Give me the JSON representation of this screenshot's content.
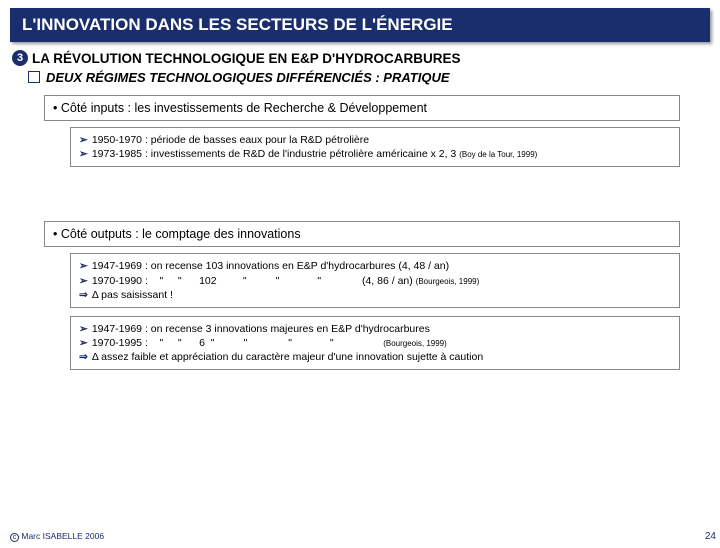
{
  "title": "L'INNOVATION DANS LES SECTEURS DE L'ÉNERGIE",
  "section_num": "3",
  "subtitle": "LA RÉVOLUTION TECHNOLOGIQUE EN E&P D'HYDROCARBURES",
  "c_line": "DEUX RÉGIMES TECHNOLOGIQUES DIFFÉRENCIÉS : PRATIQUE",
  "bullet1": "• Côté inputs : les investissements de Recherche & Développement",
  "block1": {
    "r1": "1950-1970 : période de basses eaux pour la R&D pétrolière",
    "r2a": "1973-1985 : investissements de R&D de l'industrie pétrolière américaine x 2, 3 ",
    "r2cite": "(Boy de la Tour, 1999)"
  },
  "bullet2": "• Côté outputs : le comptage des innovations",
  "block2": {
    "r1": "1947-1969 : on recense 103 innovations en E&P d'hydrocarbures (4, 48 / an)",
    "r2a": "1970-1990 :    \"     \"      102         \"          \"             \"              (4, 86 / an) ",
    "r2cite": "(Bourgeois, 1999)",
    "r3": "Δ pas saisissant !"
  },
  "block3": {
    "r1": "1947-1969 : on recense 3 innovations majeures en E&P d'hydrocarbures",
    "r2a": "1970-1995 :    \"     \"      6  \"          \"              \"             \"                 ",
    "r2cite": "(Bourgeois, 1999)",
    "r3": "Δ assez faible et appréciation du caractère majeur d'une innovation sujette à caution"
  },
  "footer": "Marc ISABELLE 2006",
  "page": "24"
}
